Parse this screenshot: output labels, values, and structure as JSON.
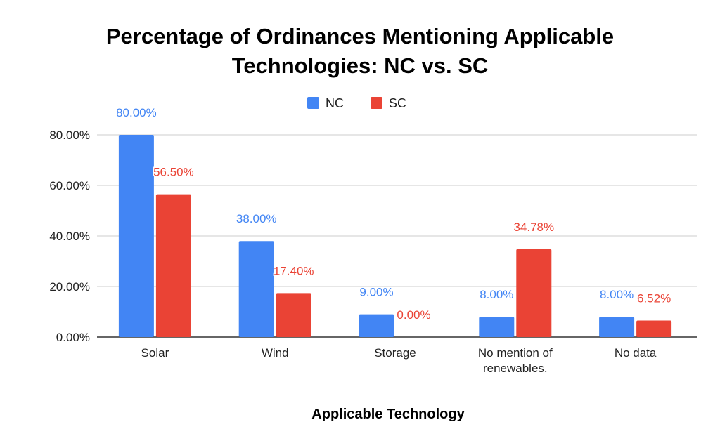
{
  "chart_data": {
    "type": "bar",
    "title_lines": [
      "Percentage of Ordinances Mentioning Applicable",
      "Technologies: NC vs. SC"
    ],
    "xlabel": "Applicable Technology",
    "ylabel": "",
    "categories": [
      [
        "Solar"
      ],
      [
        "Wind"
      ],
      [
        "Storage"
      ],
      [
        "No mention of",
        "renewables."
      ],
      [
        "No data"
      ]
    ],
    "series": [
      {
        "name": "NC",
        "color": "#4285F4",
        "values": [
          80.0,
          38.0,
          9.0,
          8.0,
          8.0
        ],
        "labels": [
          "80.00%",
          "38.00%",
          "9.00%",
          "8.00%",
          "8.00%"
        ]
      },
      {
        "name": "SC",
        "color": "#EA4335",
        "values": [
          56.5,
          17.4,
          0.0,
          34.78,
          6.52
        ],
        "labels": [
          "56.50%",
          "17.40%",
          "0.00%",
          "34.78%",
          "6.52%"
        ]
      }
    ],
    "ylim": [
      0,
      80
    ],
    "yticks": [
      0,
      20,
      40,
      60,
      80
    ],
    "ytick_labels": [
      "0.00%",
      "20.00%",
      "40.00%",
      "60.00%",
      "80.00%"
    ],
    "grid": true,
    "legend_position": "top-center"
  }
}
